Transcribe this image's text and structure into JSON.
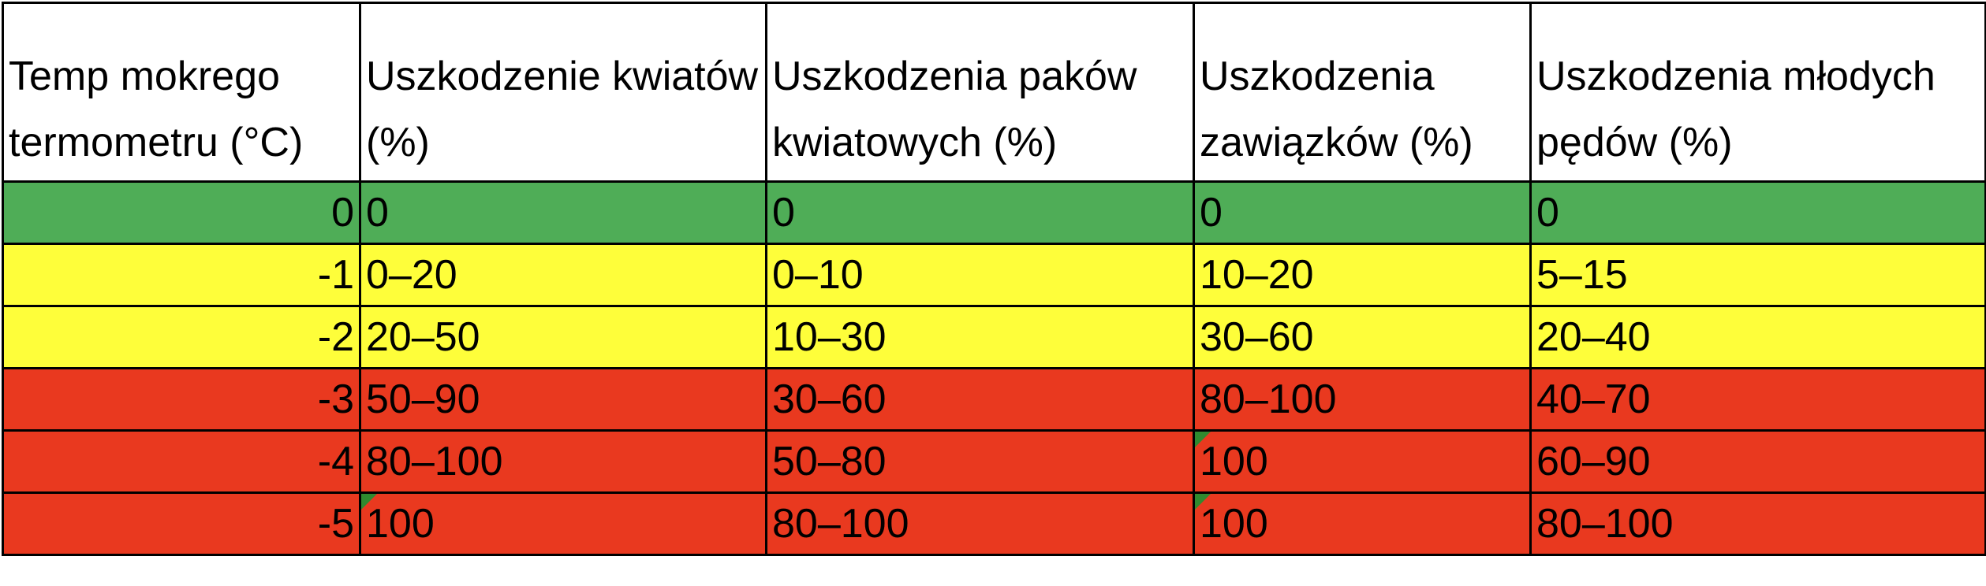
{
  "table": {
    "header": [
      "Temp mokrego termometru (°C)",
      "Uszkodzenie kwiatów (%)",
      "Uszkodzenia paków kwiatowych (%)",
      "Uszkodzenia zawiązków (%)",
      "Uszkodzenia młodych pędów (%)"
    ],
    "rows": [
      [
        "0",
        "0",
        "0",
        "0",
        "0"
      ],
      [
        "-1",
        "0–20",
        "0–10",
        "10–20",
        "5–15"
      ],
      [
        "-2",
        "20–50",
        "10–30",
        "30–60",
        "20–40"
      ],
      [
        "-3",
        "50–90",
        "30–60",
        "80–100",
        "40–70"
      ],
      [
        "-4",
        "80–100",
        "50–80",
        "100",
        "60–90"
      ],
      [
        "-5",
        "100",
        "80–100",
        "100",
        "80–100"
      ]
    ]
  }
}
